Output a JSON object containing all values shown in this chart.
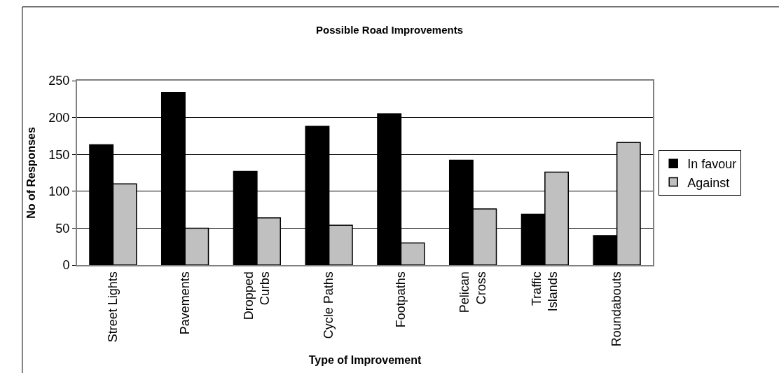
{
  "chart_data": {
    "type": "bar",
    "title": "Possible Road Improvements",
    "xlabel": "Type of Improvement",
    "ylabel": "No of Responses",
    "categories": [
      "Street Lights",
      "Pavements",
      "Dropped\nCurbs",
      "Cycle Paths",
      "Footpaths",
      "Pelican\nCross",
      "Traffic\nIslands",
      "Roundabouts"
    ],
    "series": [
      {
        "name": "In favour",
        "color": "#000000",
        "values": [
          163,
          234,
          127,
          188,
          205,
          142,
          69,
          40
        ]
      },
      {
        "name": "Against",
        "color": "#c0c0c0",
        "values": [
          110,
          50,
          64,
          54,
          30,
          76,
          126,
          166
        ]
      }
    ],
    "ylim": [
      0,
      250
    ],
    "yticks": [
      0,
      50,
      100,
      150,
      200,
      250
    ],
    "grid": "y",
    "legend": "right"
  }
}
